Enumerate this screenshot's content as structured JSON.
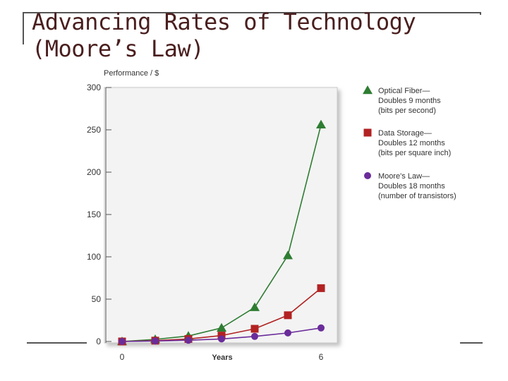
{
  "slide": {
    "title": "Advancing Rates of Technology\n(Moore’s Law)"
  },
  "chart_data": {
    "type": "line",
    "ylabel": "Performance / $",
    "xlabel": "Years",
    "xlim": [
      0,
      6
    ],
    "ylim": [
      0,
      300
    ],
    "x_ticks": [
      0,
      6
    ],
    "y_ticks": [
      0,
      50,
      100,
      150,
      200,
      250,
      300
    ],
    "x": [
      0,
      1,
      2,
      3,
      4,
      5,
      6
    ],
    "grid": false,
    "legend_position": "right",
    "series": [
      {
        "name": [
          "Optical Fiber—",
          "Doubles 9 months",
          "(bits per second)"
        ],
        "marker": "triangle",
        "color": "#2e7d32",
        "values": [
          0,
          2.5,
          6.5,
          16,
          40.3,
          101.6,
          256
        ]
      },
      {
        "name": [
          "Data Storage—",
          "Doubles 12 months",
          "(bits per square inch)"
        ],
        "marker": "square",
        "color": "#b22222",
        "values": [
          0,
          1,
          3,
          7,
          15,
          31,
          63
        ]
      },
      {
        "name": [
          "Moore's Law—",
          "Doubles 18 months",
          "(number of transistors)"
        ],
        "marker": "circle",
        "color": "#6a2c9a",
        "values": [
          0,
          0.6,
          1.5,
          3,
          6,
          10.1,
          16
        ]
      }
    ]
  }
}
